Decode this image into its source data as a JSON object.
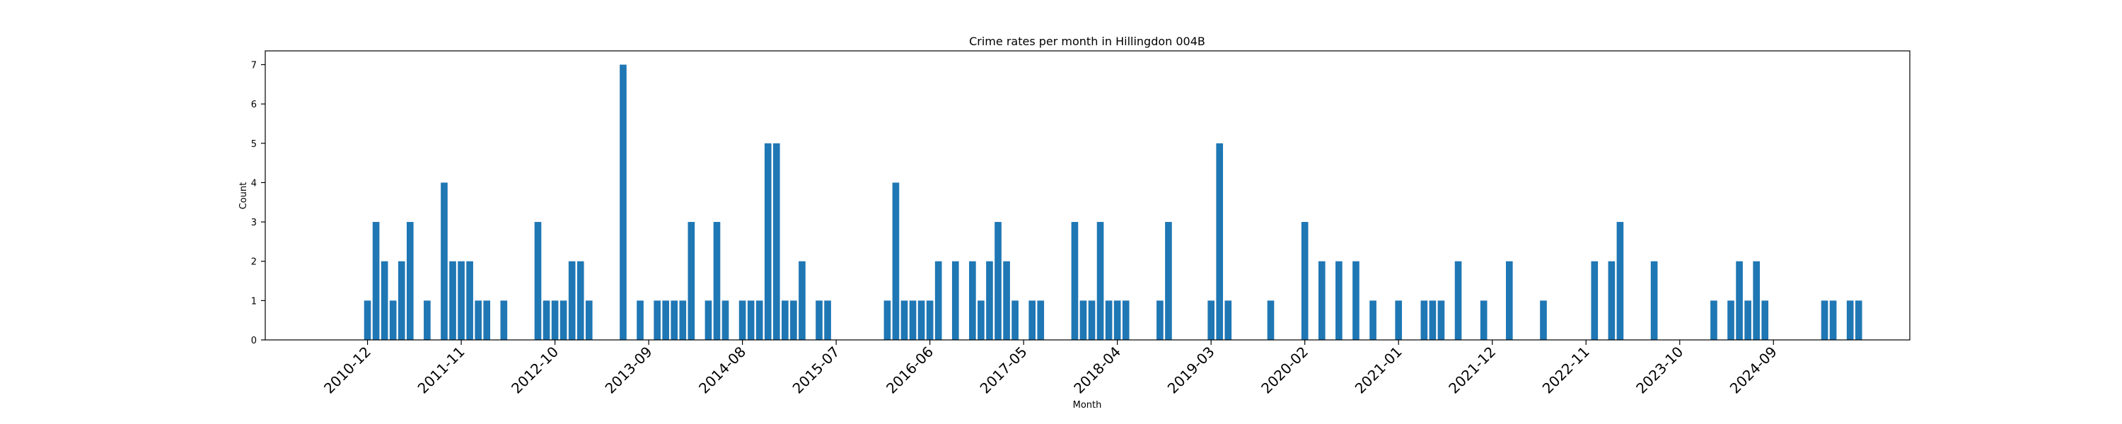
{
  "chart_data": {
    "type": "bar",
    "title": "Crime rates per month in Hillingdon 004B",
    "xlabel": "Month",
    "ylabel": "Count",
    "ylim": [
      0,
      7.35
    ],
    "yticks": [
      0,
      1,
      2,
      3,
      4,
      5,
      6,
      7
    ],
    "x_start": "2010-12",
    "x_end": "2024-12",
    "xlim": [
      "2009-12",
      "2026-01"
    ],
    "xtick_labels": [
      "2010-12",
      "2011-11",
      "2012-10",
      "2013-09",
      "2014-08",
      "2015-07",
      "2016-06",
      "2017-05",
      "2018-04",
      "2019-03",
      "2020-02",
      "2021-01",
      "2021-12",
      "2022-11",
      "2023-10",
      "2024-09"
    ],
    "bar_color": "#1f77b4",
    "grid": false,
    "legend": "none",
    "values": [
      1,
      3,
      2,
      1,
      2,
      3,
      0,
      1,
      0,
      4,
      2,
      2,
      2,
      1,
      1,
      0,
      1,
      0,
      0,
      0,
      3,
      1,
      1,
      1,
      2,
      2,
      1,
      0,
      0,
      0,
      7,
      0,
      1,
      0,
      1,
      1,
      1,
      1,
      3,
      0,
      1,
      3,
      1,
      0,
      1,
      1,
      1,
      5,
      5,
      1,
      1,
      2,
      0,
      1,
      1,
      0,
      0,
      0,
      0,
      0,
      0,
      1,
      4,
      1,
      1,
      1,
      1,
      2,
      0,
      2,
      0,
      2,
      1,
      2,
      3,
      2,
      1,
      0,
      1,
      1,
      0,
      0,
      0,
      3,
      1,
      1,
      3,
      1,
      1,
      1,
      0,
      0,
      0,
      1,
      3,
      0,
      0,
      0,
      0,
      1,
      5,
      1,
      0,
      0,
      0,
      0,
      1,
      0,
      0,
      0,
      3,
      0,
      2,
      0,
      2,
      0,
      2,
      0,
      1,
      0,
      0,
      1,
      0,
      0,
      1,
      1,
      1,
      0,
      2,
      0,
      0,
      1,
      0,
      0,
      2,
      0,
      0,
      0,
      1,
      0,
      0,
      0,
      0,
      0,
      2,
      0,
      2,
      3,
      0,
      0,
      0,
      2,
      0,
      0,
      0,
      0,
      0,
      0,
      1,
      0,
      1,
      2,
      1,
      2,
      1,
      0,
      0,
      0,
      0,
      0,
      0,
      1,
      1,
      0,
      1,
      1,
      0,
      0,
      0,
      0,
      0,
      0,
      0,
      0,
      0
    ]
  }
}
